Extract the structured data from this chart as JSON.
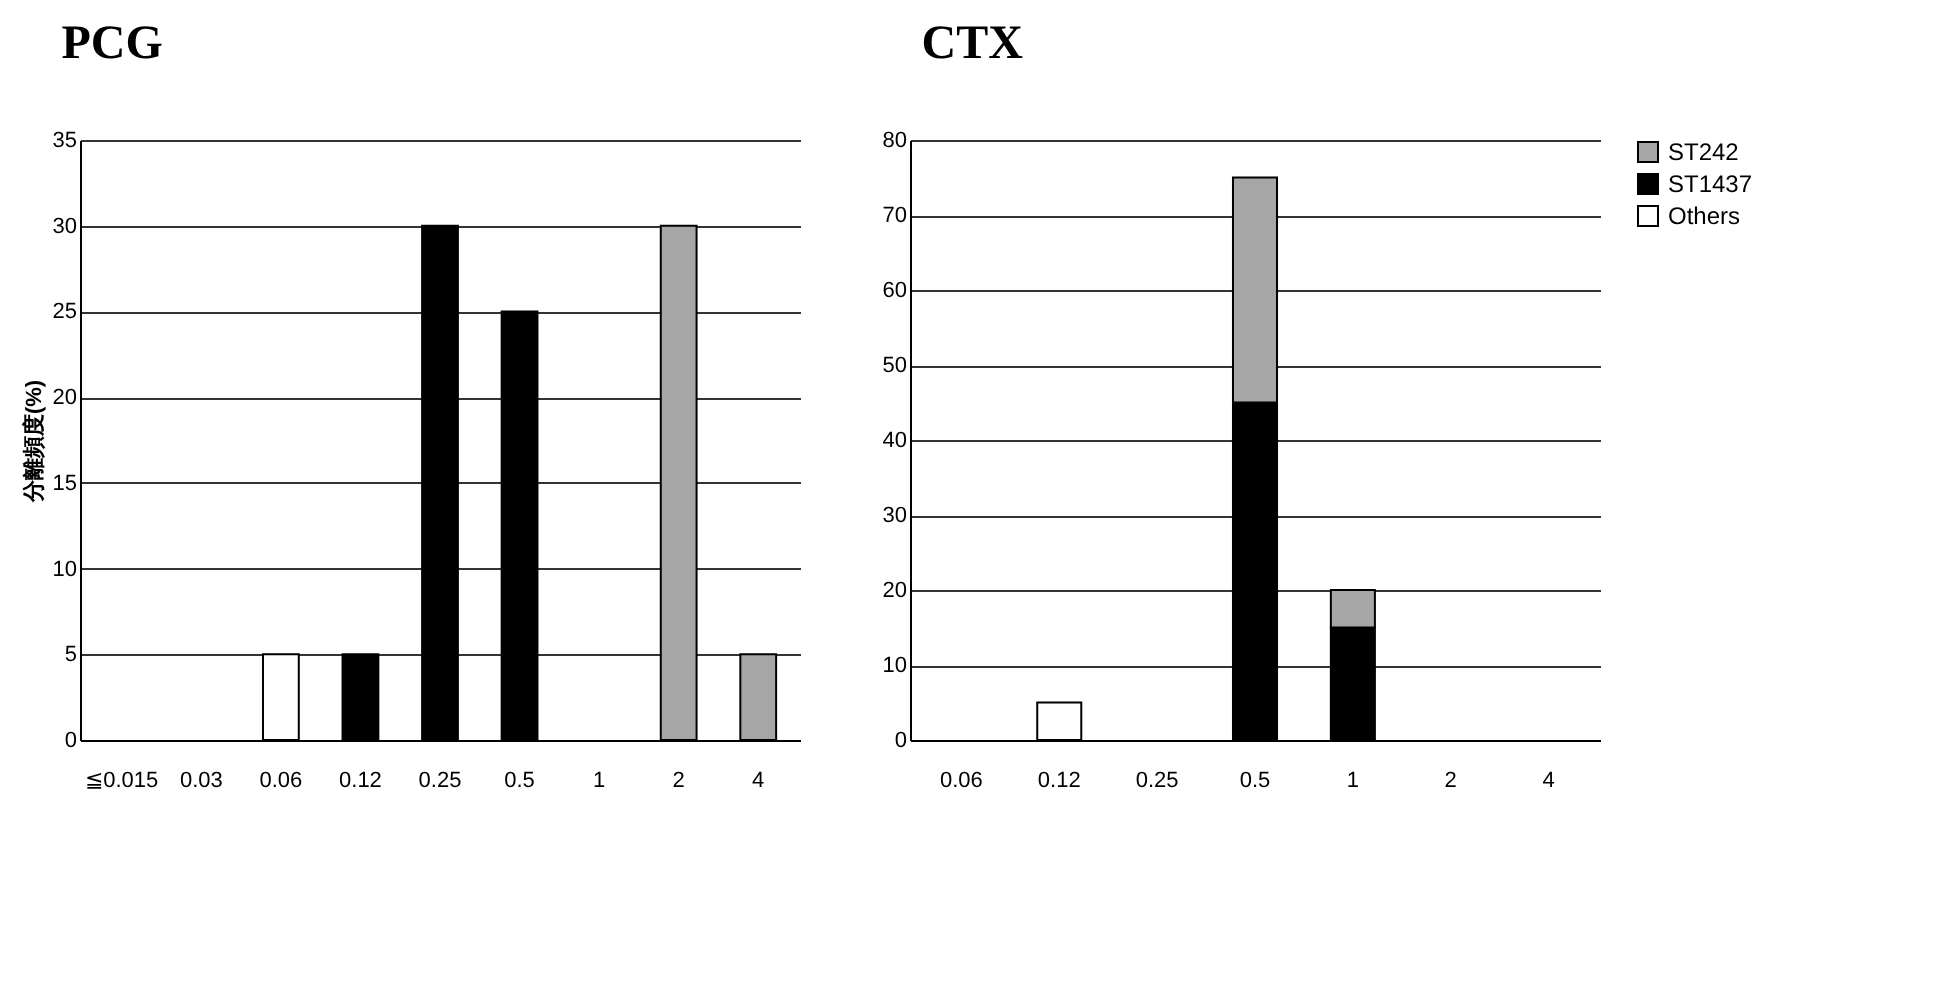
{
  "chart_data": [
    {
      "type": "bar",
      "title": "PCG",
      "ylabel": "分離頻度(%)",
      "categories": [
        "≦0.015",
        "0.03",
        "0.06",
        "0.12",
        "0.25",
        "0.5",
        "1",
        "2",
        "4"
      ],
      "stacked": true,
      "series": [
        {
          "color": "#ffffff",
          "values": [
            0,
            0,
            5,
            0,
            0,
            0,
            0,
            0,
            0
          ]
        },
        {
          "color": "#000000",
          "values": [
            0,
            0,
            0,
            5,
            30,
            25,
            0,
            0,
            0
          ]
        },
        {
          "color": "#a6a6a6",
          "values": [
            0,
            0,
            0,
            0,
            0,
            0,
            0,
            30,
            5
          ]
        }
      ],
      "ylim": [
        0,
        35
      ],
      "yticks": [
        0,
        5,
        10,
        15,
        20,
        25,
        30,
        35
      ],
      "grid": "y",
      "legend": false
    },
    {
      "type": "bar",
      "title": "CTX",
      "categories": [
        "0.06",
        "0.12",
        "0.25",
        "0.5",
        "1",
        "2",
        "4"
      ],
      "stacked": true,
      "series": [
        {
          "name": "Others",
          "color": "#ffffff",
          "values": [
            0,
            5,
            0,
            0,
            0,
            0,
            0
          ]
        },
        {
          "name": "ST1437",
          "color": "#000000",
          "values": [
            0,
            0,
            0,
            45,
            15,
            0,
            0
          ]
        },
        {
          "name": "ST242",
          "color": "#a6a6a6",
          "values": [
            0,
            0,
            0,
            30,
            5,
            0,
            0
          ]
        }
      ],
      "ylim": [
        0,
        80
      ],
      "yticks": [
        0,
        10,
        20,
        30,
        40,
        50,
        60,
        70,
        80
      ],
      "grid": "y",
      "legend": "right"
    }
  ]
}
